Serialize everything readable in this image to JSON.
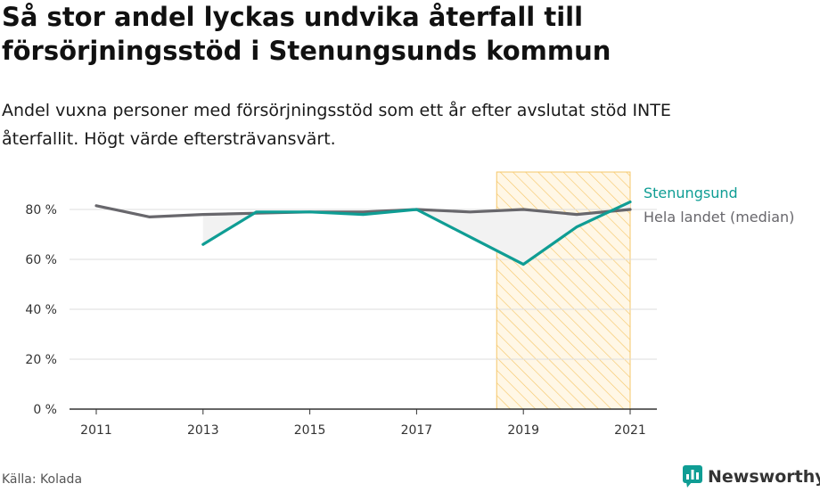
{
  "header": {
    "title_line1": "Så stor andel lyckas undvika återfall till",
    "title_line2": "försörjningsstöd i Stenungsunds kommun",
    "subtitle_line1": "Andel vuxna personer med försörjningsstöd som ett år efter avslutat stöd INTE",
    "subtitle_line2": "återfallit. Högt värde eftersträvansvärt."
  },
  "footer": {
    "source": "Källa: Kolada",
    "brand": "Newsworthy",
    "brand_icon": "bar-chart-speech-bubble-icon"
  },
  "colors": {
    "stenungsund": "#0f9d94",
    "median": "#68676c",
    "highlight_stroke": "#f6c76a",
    "highlight_fill": "#fff7e6",
    "gap_fill": "#f2f2f2",
    "grid": "#dddddd",
    "axis": "#333333"
  },
  "chart_data": {
    "type": "line",
    "x": [
      2011,
      2012,
      2013,
      2014,
      2015,
      2016,
      2017,
      2018,
      2019,
      2020,
      2021
    ],
    "x_ticks": [
      "2011",
      "2013",
      "2015",
      "2017",
      "2019",
      "2021"
    ],
    "y_ticks": [
      "0 %",
      "20 %",
      "40 %",
      "60 %",
      "80 %"
    ],
    "y_tick_values": [
      0,
      20,
      40,
      60,
      80
    ],
    "ylim": [
      0,
      95
    ],
    "xlim": [
      2011,
      2021
    ],
    "highlight_range": [
      2018.5,
      2021
    ],
    "grid": true,
    "series": [
      {
        "name": "Stenungsund",
        "values": [
          null,
          null,
          66,
          79,
          79,
          78,
          80,
          69,
          58,
          73,
          83
        ]
      },
      {
        "name": "Hela landet (median)",
        "values": [
          81.5,
          77,
          78,
          78.5,
          79,
          79,
          80,
          79,
          80,
          78,
          80
        ]
      }
    ]
  }
}
